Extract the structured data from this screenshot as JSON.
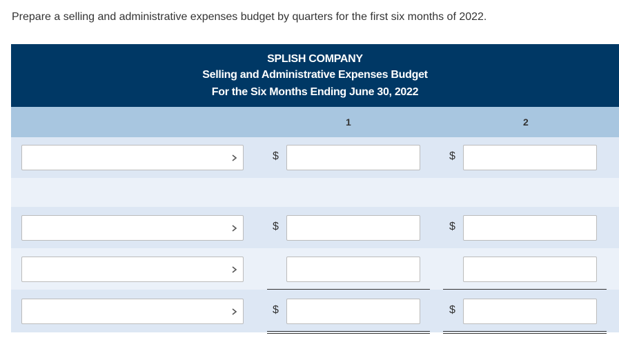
{
  "instruction": "Prepare a selling and administrative expenses budget by quarters for the first six months of 2022.",
  "header": {
    "company": "SPLISH COMPANY",
    "title": "Selling and Administrative Expenses Budget",
    "period": "For the Six Months Ending June 30, 2022"
  },
  "columns": [
    "1",
    "2"
  ],
  "rows": [
    {
      "symbols": [
        "$",
        "$"
      ]
    },
    {
      "symbols": [
        "$",
        "$"
      ]
    },
    {
      "symbols": [
        "$",
        "$"
      ]
    }
  ]
}
